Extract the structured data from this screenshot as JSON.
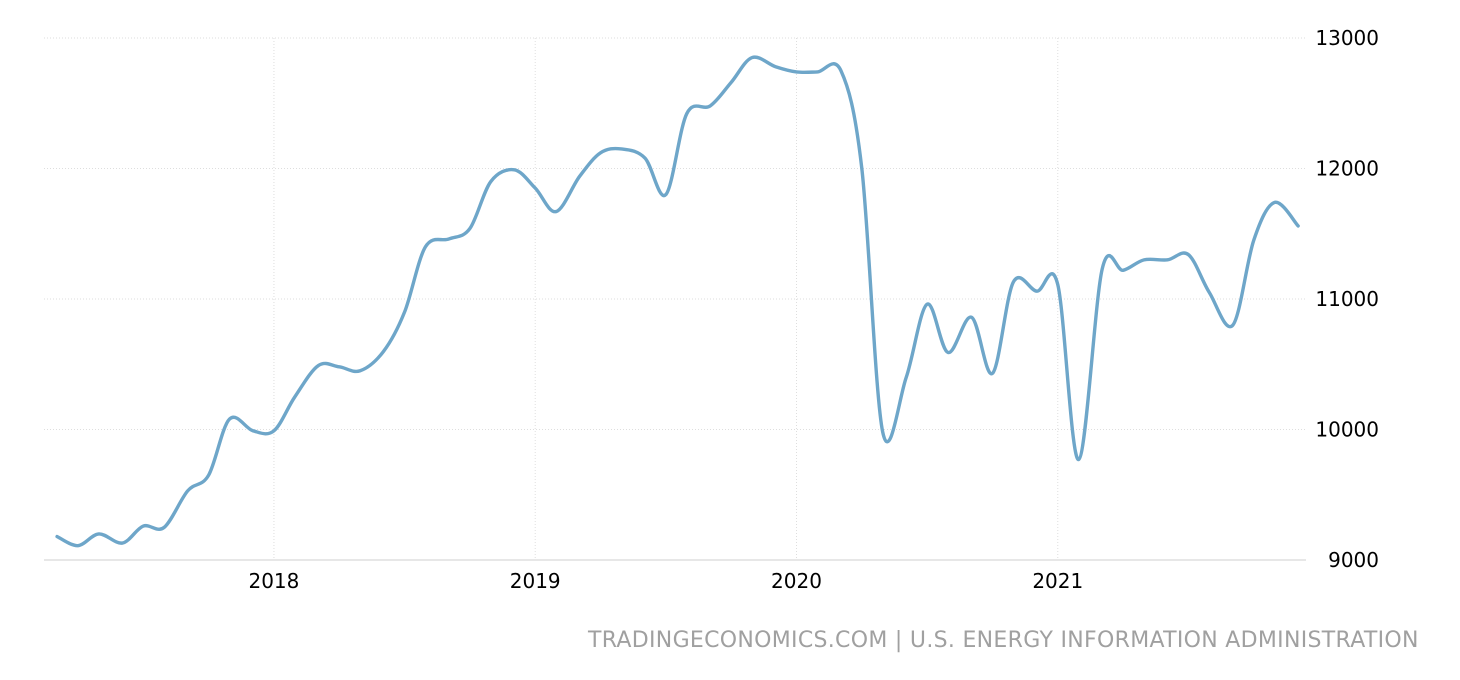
{
  "chart_data": {
    "type": "line",
    "title": "",
    "xlabel": "",
    "ylabel": "",
    "xlim": [
      2017.12,
      2021.95
    ],
    "ylim": [
      9000,
      13000
    ],
    "y_ticks": [
      "9000",
      "10000",
      "11000",
      "12000",
      "13000"
    ],
    "x_ticks": [
      {
        "value": 2018,
        "label": "2018"
      },
      {
        "value": 2019,
        "label": "2019"
      },
      {
        "value": 2020,
        "label": "2020"
      },
      {
        "value": 2021,
        "label": "2021"
      }
    ],
    "grid": true,
    "y_axis_side": "right",
    "line_color": "#6ea6c9",
    "series": [
      {
        "values": [
          [
            2017.17,
            9180
          ],
          [
            2017.25,
            9110
          ],
          [
            2017.33,
            9200
          ],
          [
            2017.42,
            9130
          ],
          [
            2017.5,
            9260
          ],
          [
            2017.58,
            9250
          ],
          [
            2017.67,
            9530
          ],
          [
            2017.75,
            9650
          ],
          [
            2017.83,
            10080
          ],
          [
            2017.92,
            9990
          ],
          [
            2018.0,
            9990
          ],
          [
            2018.08,
            10250
          ],
          [
            2018.17,
            10490
          ],
          [
            2018.25,
            10480
          ],
          [
            2018.33,
            10450
          ],
          [
            2018.42,
            10600
          ],
          [
            2018.5,
            10900
          ],
          [
            2018.58,
            11400
          ],
          [
            2018.67,
            11460
          ],
          [
            2018.75,
            11540
          ],
          [
            2018.83,
            11900
          ],
          [
            2018.92,
            11990
          ],
          [
            2019.0,
            11850
          ],
          [
            2019.08,
            11670
          ],
          [
            2019.17,
            11940
          ],
          [
            2019.25,
            12120
          ],
          [
            2019.33,
            12150
          ],
          [
            2019.42,
            12080
          ],
          [
            2019.5,
            11800
          ],
          [
            2019.58,
            12420
          ],
          [
            2019.67,
            12480
          ],
          [
            2019.75,
            12660
          ],
          [
            2019.83,
            12850
          ],
          [
            2019.92,
            12780
          ],
          [
            2020.0,
            12740
          ],
          [
            2020.08,
            12740
          ],
          [
            2020.17,
            12750
          ],
          [
            2020.25,
            12000
          ],
          [
            2020.33,
            9980
          ],
          [
            2020.42,
            10400
          ],
          [
            2020.5,
            10960
          ],
          [
            2020.58,
            10590
          ],
          [
            2020.67,
            10860
          ],
          [
            2020.75,
            10430
          ],
          [
            2020.83,
            11130
          ],
          [
            2020.92,
            11060
          ],
          [
            2021.0,
            11110
          ],
          [
            2021.08,
            9770
          ],
          [
            2021.17,
            11230
          ],
          [
            2021.25,
            11220
          ],
          [
            2021.33,
            11300
          ],
          [
            2021.42,
            11300
          ],
          [
            2021.5,
            11340
          ],
          [
            2021.58,
            11050
          ],
          [
            2021.67,
            10800
          ],
          [
            2021.75,
            11450
          ],
          [
            2021.83,
            11740
          ],
          [
            2021.92,
            11560
          ]
        ]
      }
    ]
  },
  "source": "TRADINGECONOMICS.COM | U.S. ENERGY INFORMATION ADMINISTRATION"
}
